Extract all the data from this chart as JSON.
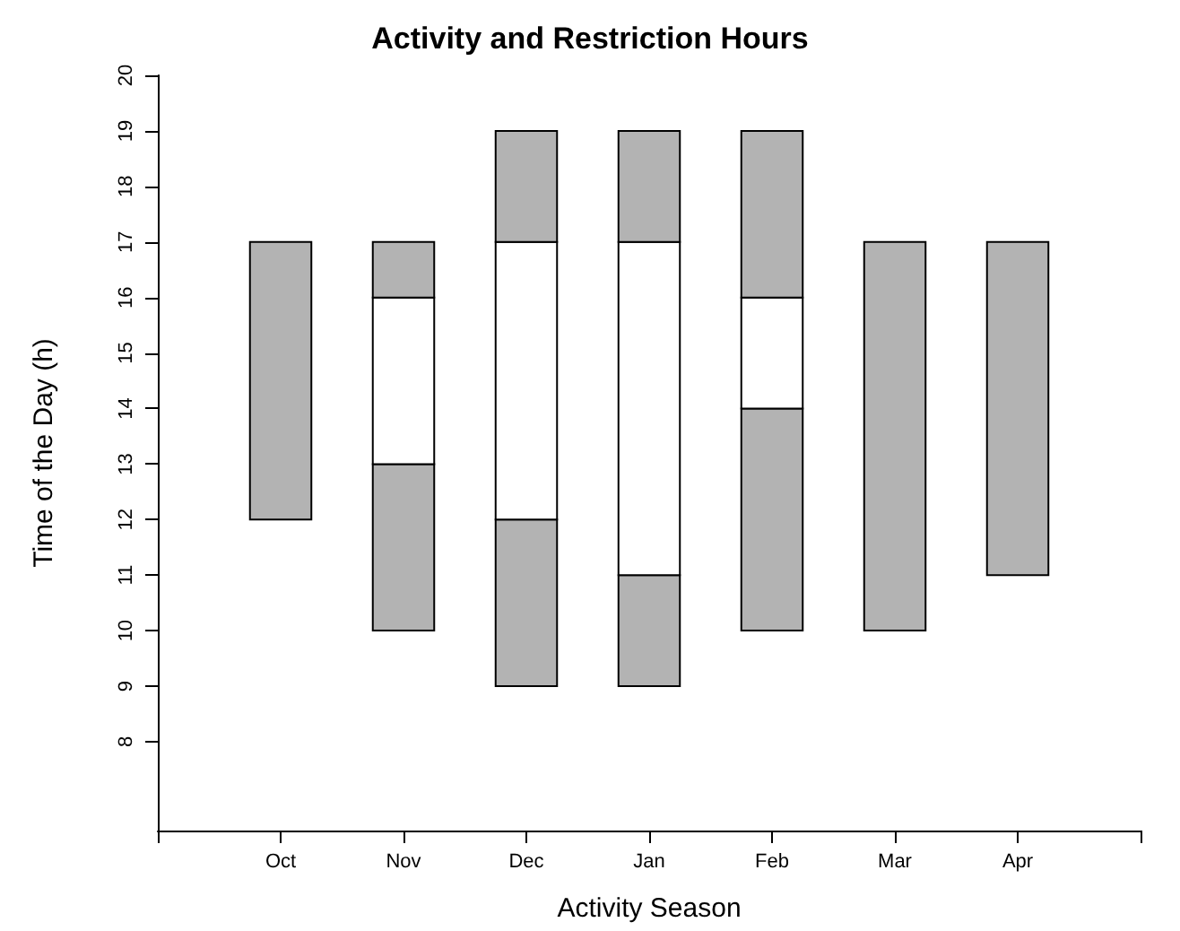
{
  "chart_data": {
    "type": "bar",
    "title": "Activity and Restriction Hours",
    "xlabel": "Activity Season",
    "ylabel": "Time of the Day (h)",
    "categories": [
      null,
      "Oct",
      "Nov",
      "Dec",
      "Jan",
      "Feb",
      "Mar",
      "Apr",
      null
    ],
    "series": [
      {
        "color": "#b3b3b3",
        "base": [
          null,
          12,
          10,
          9,
          9,
          10,
          10,
          11,
          null
        ],
        "values": [
          null,
          5,
          3,
          3,
          2,
          4,
          7,
          6,
          null
        ]
      },
      {
        "color": "#ffffff",
        "base": [
          null,
          null,
          13,
          12,
          11,
          14,
          null,
          null,
          null
        ],
        "values": [
          null,
          null,
          3,
          5,
          6,
          2,
          null,
          null,
          null
        ]
      },
      {
        "color": "#b3b3b3",
        "base": [
          null,
          null,
          16,
          17,
          17,
          16,
          null,
          null,
          null
        ],
        "values": [
          null,
          null,
          1,
          2,
          2,
          3,
          null,
          null,
          null
        ]
      }
    ],
    "ylim": [
      6.4,
      20
    ],
    "yticks": [
      8,
      9,
      10,
      11,
      12,
      13,
      14,
      15,
      16,
      17,
      18,
      19,
      20
    ],
    "grid": false
  }
}
